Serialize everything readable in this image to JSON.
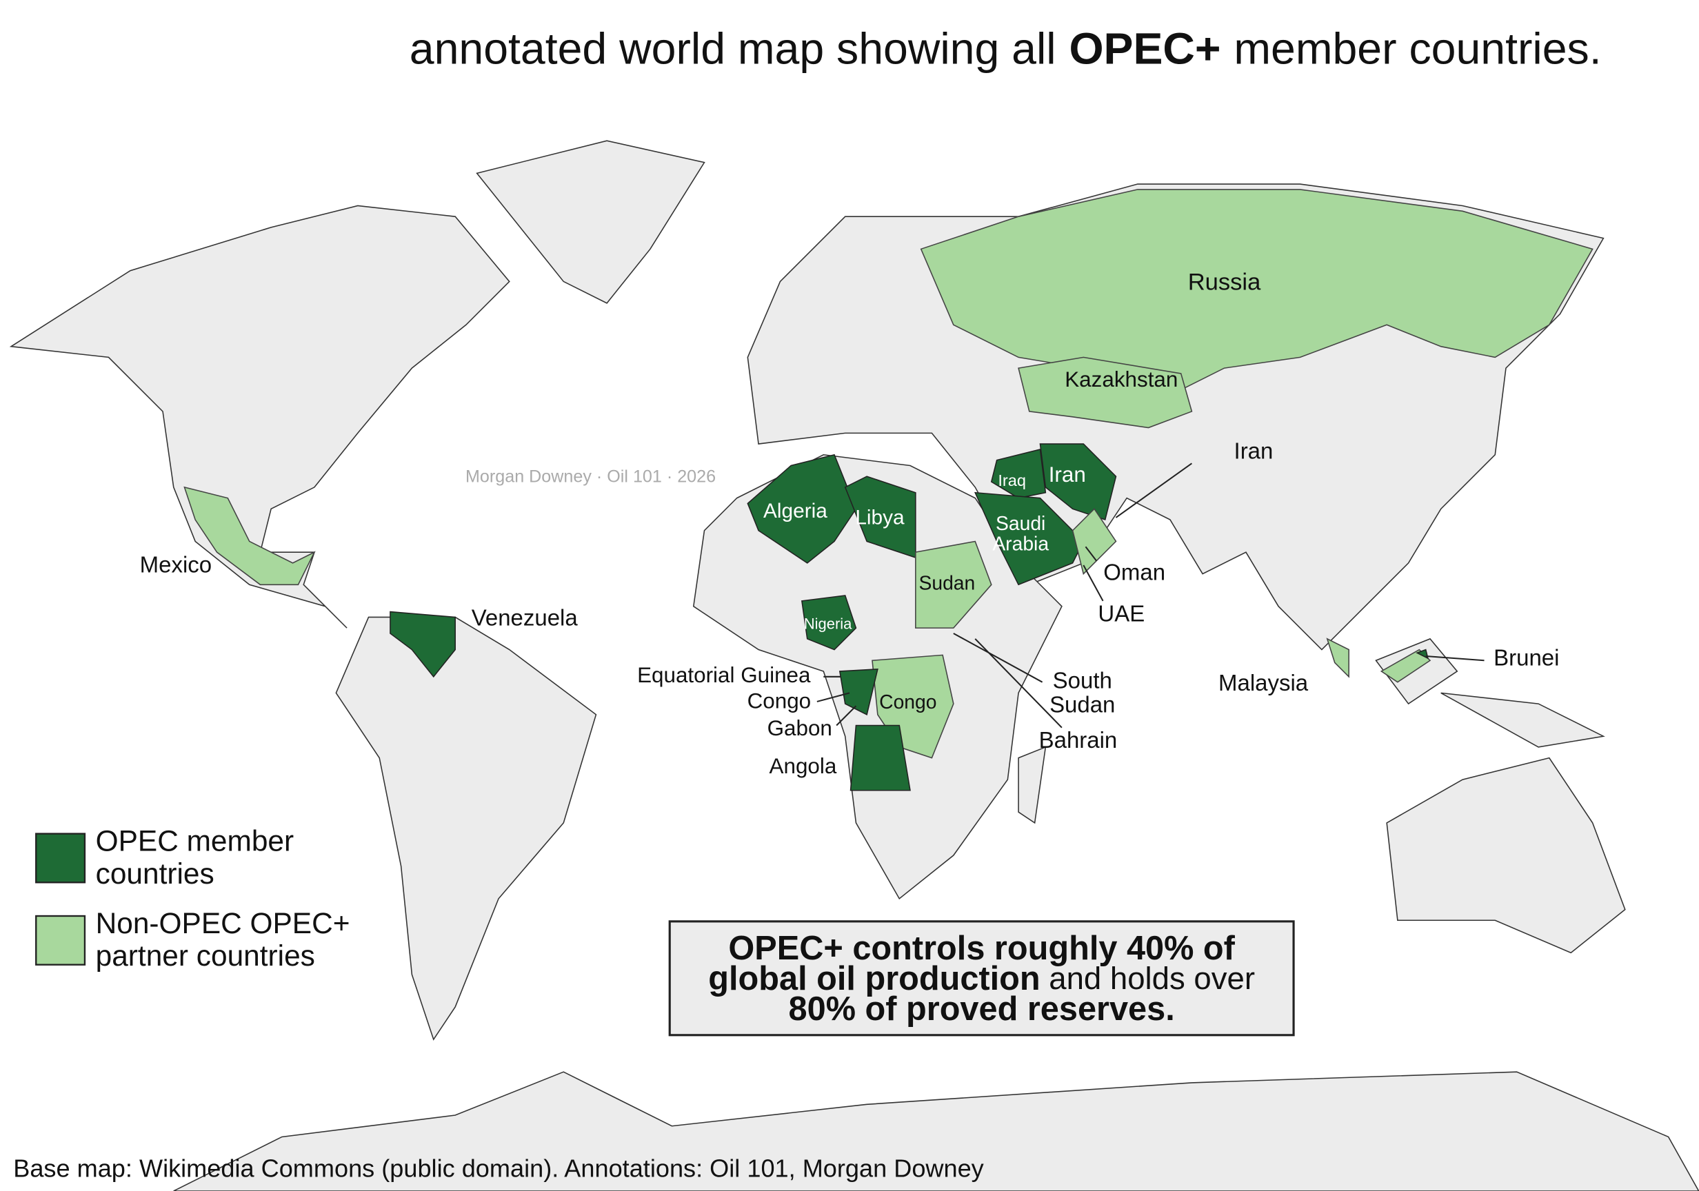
{
  "title": {
    "before": "annotated world map showing all",
    "bold": "OPEC+",
    "after": "member countries."
  },
  "watermark": "Morgan Downey · Oil 101 · 2026",
  "labels": [
    {
      "lines": [
        "Russia"
      ]
    },
    {
      "lines": [
        "Kazakhstan"
      ]
    },
    {
      "lines": [
        "Iraq"
      ]
    },
    {
      "lines": [
        "Iran"
      ]
    },
    {
      "lines": [
        "Iran"
      ]
    },
    {
      "lines": [
        "Algeria"
      ]
    },
    {
      "lines": [
        "Libya"
      ]
    },
    {
      "lines": [
        "Saudi",
        "Arabia"
      ]
    },
    {
      "lines": [
        "Oman"
      ]
    },
    {
      "lines": [
        "UAE"
      ]
    },
    {
      "lines": [
        "Sudan"
      ]
    },
    {
      "lines": [
        "Mexico"
      ]
    },
    {
      "lines": [
        "Venezuela"
      ]
    },
    {
      "lines": [
        "Nigeria"
      ]
    },
    {
      "lines": [
        "Equatorial Guinea"
      ]
    },
    {
      "lines": [
        "Congo"
      ]
    },
    {
      "lines": [
        "Gabon"
      ]
    },
    {
      "lines": [
        "Angola"
      ]
    },
    {
      "lines": [
        "Congo"
      ]
    },
    {
      "lines": [
        "South",
        "Sudan"
      ]
    },
    {
      "lines": [
        "Bahrain"
      ]
    },
    {
      "lines": [
        "Malaysia"
      ]
    },
    {
      "lines": [
        "Brunei"
      ]
    }
  ],
  "legend": {
    "items": [
      {
        "lines": [
          "OPEC member",
          "countries"
        ],
        "color": "#1e6b35"
      },
      {
        "lines": [
          "Non-OPEC OPEC+",
          "partner countries"
        ],
        "color": "#a8d89d"
      }
    ]
  },
  "callout": {
    "lines": [
      [
        {
          "text": "OPEC+ controls roughly 40% of",
          "bold": true
        }
      ],
      [
        {
          "text": "global oil production",
          "bold": true
        },
        {
          "text": "and holds over",
          "bold": false
        }
      ],
      [
        {
          "text": "80% of proved reserves.",
          "bold": true
        }
      ]
    ]
  },
  "credit": "Base map: Wikimedia Commons (public domain). Annotations: Oil 101, Morgan Downey"
}
